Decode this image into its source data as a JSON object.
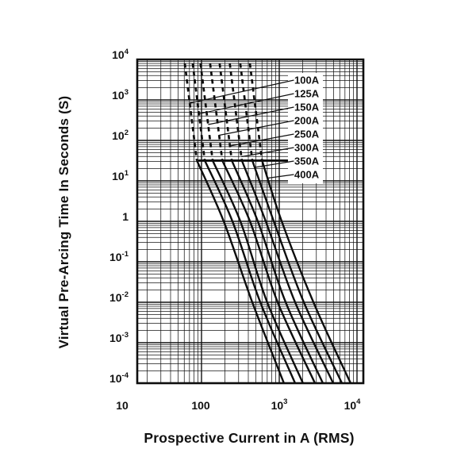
{
  "chart_data": {
    "type": "line",
    "title": "",
    "description": "Fuse time-current characteristic curves, log-log grid. Upper portions of curves are dashed; a thick horizontal bar marks the dashed/solid transition near 30 s.",
    "x_axis": {
      "label": "Prospective Current in A (RMS)",
      "scale": "log",
      "min": 15,
      "max": 14000,
      "tick_values": [
        10,
        100,
        1000,
        10000
      ],
      "tick_labels": [
        {
          "base": "10",
          "exp": ""
        },
        {
          "base": "100",
          "exp": ""
        },
        {
          "base": "10",
          "exp": "3"
        },
        {
          "base": "10",
          "exp": "4"
        }
      ]
    },
    "y_axis": {
      "label": "Virtual Pre-Arcing Time In Seconds (S)",
      "scale": "log",
      "min": 0.0001,
      "max": 10000,
      "tick_values": [
        10000,
        1000,
        100,
        10,
        1,
        0.1,
        0.01,
        0.001,
        0.0001
      ],
      "tick_labels": [
        {
          "base": "10",
          "exp": "4"
        },
        {
          "base": "10",
          "exp": "3"
        },
        {
          "base": "10",
          "exp": "2"
        },
        {
          "base": "10",
          "exp": "1"
        },
        {
          "base": "1",
          "exp": ""
        },
        {
          "base": "10",
          "exp": "-1"
        },
        {
          "base": "10",
          "exp": "-2"
        },
        {
          "base": "10",
          "exp": "-3"
        },
        {
          "base": "10",
          "exp": "-4"
        }
      ]
    },
    "grid": {
      "major": true,
      "minor": true
    },
    "legend": {
      "position": "inside-upper-right",
      "entries": [
        "100A",
        "125A",
        "150A",
        "200A",
        "250A",
        "300A",
        "350A",
        "400A"
      ]
    },
    "dash_above_seconds": 32,
    "series": [
      {
        "name": "100A",
        "points_A_s": [
          [
            61,
            8000
          ],
          [
            87,
            32
          ],
          [
            193,
            1
          ],
          [
            450,
            0.01
          ],
          [
            1150,
            0.0001
          ]
        ]
      },
      {
        "name": "125A",
        "points_A_s": [
          [
            77,
            8000
          ],
          [
            110,
            32
          ],
          [
            250,
            1
          ],
          [
            570,
            0.01
          ],
          [
            1600,
            0.0001
          ]
        ]
      },
      {
        "name": "150A",
        "points_A_s": [
          [
            97,
            8000
          ],
          [
            139,
            32
          ],
          [
            316,
            1
          ],
          [
            700,
            0.01
          ],
          [
            2020,
            0.0001
          ]
        ]
      },
      {
        "name": "200A",
        "points_A_s": [
          [
            129,
            8000
          ],
          [
            185,
            32
          ],
          [
            420,
            1
          ],
          [
            955,
            0.01
          ],
          [
            2880,
            0.0001
          ]
        ]
      },
      {
        "name": "250A",
        "points_A_s": [
          [
            171,
            8000
          ],
          [
            245,
            32
          ],
          [
            530,
            1
          ],
          [
            1210,
            0.01
          ],
          [
            3640,
            0.0001
          ]
        ]
      },
      {
        "name": "300A",
        "points_A_s": [
          [
            231,
            8000
          ],
          [
            330,
            32
          ],
          [
            670,
            1
          ],
          [
            1600,
            0.01
          ],
          [
            4940,
            0.0001
          ]
        ]
      },
      {
        "name": "350A",
        "points_A_s": [
          [
            315,
            8000
          ],
          [
            450,
            32
          ],
          [
            850,
            1
          ],
          [
            2070,
            0.01
          ],
          [
            6400,
            0.0001
          ]
        ]
      },
      {
        "name": "400A",
        "points_A_s": [
          [
            419,
            8000
          ],
          [
            600,
            32
          ],
          [
            1075,
            1
          ],
          [
            2750,
            0.01
          ],
          [
            8280,
            0.0001
          ]
        ]
      }
    ]
  }
}
